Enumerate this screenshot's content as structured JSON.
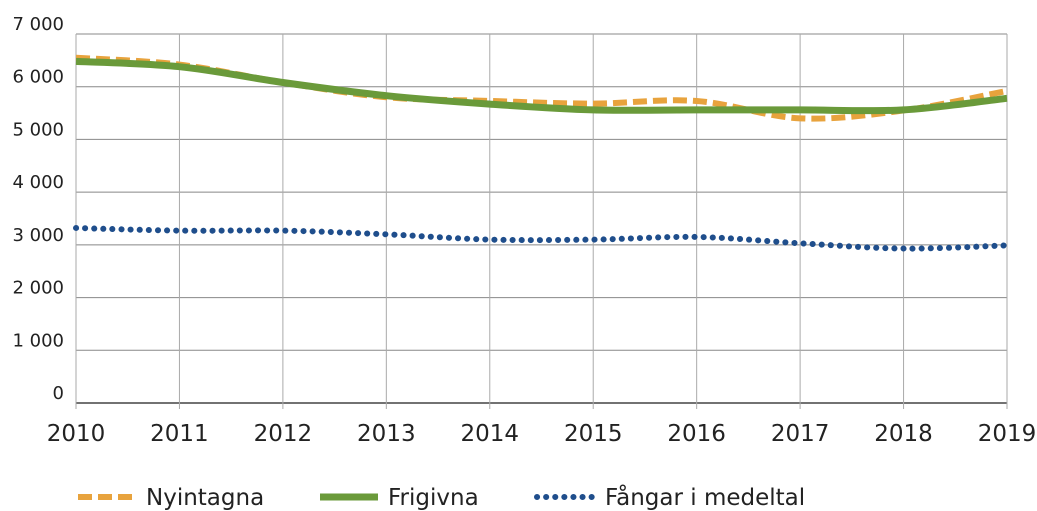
{
  "chart_data": {
    "type": "line",
    "x": [
      2010,
      2011,
      2012,
      2013,
      2014,
      2015,
      2016,
      2017,
      2018,
      2019
    ],
    "series": [
      {
        "name": "Nyintagna",
        "color": "#e8a33d",
        "style": "dashed",
        "values": [
          6550,
          6420,
          6080,
          5800,
          5730,
          5680,
          5730,
          5400,
          5550,
          5920
        ]
      },
      {
        "name": "Frigivna",
        "color": "#6a9a3a",
        "style": "solid",
        "values": [
          6480,
          6380,
          6080,
          5830,
          5670,
          5560,
          5560,
          5560,
          5560,
          5780
        ]
      },
      {
        "name": "Fångar i medeltal",
        "color": "#1f4e8c",
        "style": "dotted",
        "values": [
          3320,
          3270,
          3270,
          3200,
          3100,
          3100,
          3150,
          3030,
          2930,
          2990
        ]
      }
    ],
    "xlim": [
      2010,
      2019
    ],
    "xticks": [
      2010,
      2011,
      2012,
      2013,
      2014,
      2015,
      2016,
      2017,
      2018,
      2019
    ],
    "ylim": [
      0,
      7000
    ],
    "yticks": [
      0,
      {
        "value": 1000,
        "label": "1 000"
      },
      {
        "value": 2000,
        "label": "2 000"
      },
      {
        "value": 3000,
        "label": "3 000"
      },
      {
        "value": 4000,
        "label": "4 000"
      },
      {
        "value": 5000,
        "label": "5 000"
      },
      {
        "value": 6000,
        "label": "6 000"
      },
      {
        "value": 7000,
        "label": "7 000"
      }
    ],
    "grid": true,
    "legend": "bottom"
  }
}
